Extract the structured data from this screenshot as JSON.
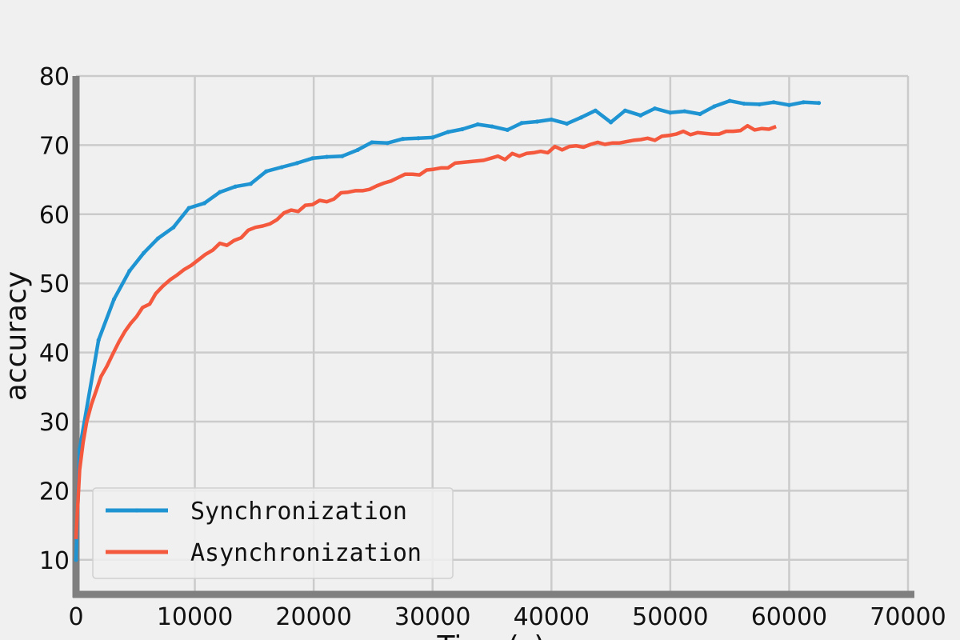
{
  "chart_data": {
    "type": "line",
    "xlabel": "Time(s)",
    "ylabel": "accuracy",
    "xlim": [
      0,
      70000
    ],
    "ylim": [
      5,
      80
    ],
    "xticks": [
      "0",
      "10000",
      "20000",
      "30000",
      "40000",
      "50000",
      "60000",
      "70000"
    ],
    "yticks": [
      "10",
      "20",
      "30",
      "40",
      "50",
      "60",
      "70",
      "80"
    ],
    "grid": true,
    "legend_position": "lower-left",
    "series": [
      {
        "name": "Synchronization",
        "color": "#1f94d2",
        "x": [
          0,
          300,
          1900,
          3200,
          4500,
          5700,
          6900,
          8200,
          9500,
          10800,
          12100,
          13400,
          14700,
          16000,
          17300,
          18600,
          19900,
          21100,
          22400,
          23700,
          24900,
          26200,
          27500,
          28800,
          30000,
          31300,
          32500,
          33800,
          35000,
          36300,
          37500,
          38800,
          40000,
          41300,
          42500,
          43700,
          45000,
          46200,
          47500,
          48700,
          50000,
          51200,
          52500,
          53700,
          55000,
          56200,
          57500,
          58700,
          60000,
          61200,
          62500
        ],
        "values": [
          10,
          26,
          41.8,
          47.7,
          51.8,
          54.4,
          56.5,
          58.1,
          60.9,
          61.6,
          63.2,
          64.0,
          64.4,
          66.2,
          66.8,
          67.4,
          68.1,
          68.3,
          68.4,
          69.3,
          70.4,
          70.3,
          70.9,
          71.0,
          71.1,
          71.9,
          72.3,
          73.0,
          72.7,
          72.2,
          73.2,
          73.4,
          73.7,
          73.1,
          74.0,
          75.0,
          73.3,
          75.0,
          74.3,
          75.3,
          74.7,
          74.9,
          74.5,
          75.6,
          76.4,
          76.0,
          75.9,
          76.2,
          75.8,
          76.2,
          76.1
        ]
      },
      {
        "name": "Asynchronization",
        "color": "#f4593e",
        "x": [
          0,
          300,
          600,
          900,
          1300,
          1700,
          2100,
          2600,
          3100,
          3600,
          4100,
          4600,
          5100,
          5600,
          6200,
          6700,
          7300,
          7900,
          8500,
          9100,
          9700,
          10300,
          10900,
          11500,
          12100,
          12700,
          13300,
          13900,
          14500,
          15100,
          15700,
          16300,
          16900,
          17500,
          18100,
          18700,
          19300,
          19900,
          20500,
          21100,
          21700,
          22300,
          22900,
          23500,
          24100,
          24700,
          25300,
          25900,
          26500,
          27100,
          27700,
          28300,
          28900,
          29500,
          30100,
          30700,
          31300,
          31900,
          32500,
          33100,
          33700,
          34300,
          34900,
          35500,
          36100,
          36700,
          37300,
          37900,
          38500,
          39100,
          39700,
          40300,
          40900,
          41500,
          42100,
          42700,
          43300,
          43900,
          44500,
          45100,
          45700,
          46300,
          46900,
          47500,
          48100,
          48700,
          49300,
          49900,
          50500,
          51100,
          51700,
          52300,
          52900,
          53500,
          54100,
          54700,
          55300,
          55900,
          56500,
          57100,
          57700,
          58300,
          58900
        ],
        "values": [
          13,
          23,
          27,
          30,
          32.5,
          34.5,
          36.5,
          38,
          39.8,
          41.5,
          43,
          44.2,
          45.2,
          46.5,
          47,
          48.5,
          49.6,
          50.5,
          51.2,
          52,
          52.6,
          53.4,
          54.2,
          54.8,
          55.8,
          55.5,
          56.2,
          56.6,
          57.7,
          58.1,
          58.3,
          58.6,
          59.2,
          60.2,
          60.6,
          60.4,
          61.3,
          61.4,
          62.0,
          61.8,
          62.2,
          63.1,
          63.2,
          63.4,
          63.4,
          63.6,
          64.1,
          64.5,
          64.8,
          65.3,
          65.8,
          65.8,
          65.7,
          66.4,
          66.5,
          66.7,
          66.7,
          67.4,
          67.5,
          67.6,
          67.7,
          67.8,
          68.1,
          68.4,
          67.9,
          68.8,
          68.4,
          68.8,
          68.9,
          69.1,
          68.9,
          69.8,
          69.3,
          69.8,
          69.9,
          69.7,
          70.1,
          70.4,
          70.1,
          70.3,
          70.3,
          70.5,
          70.7,
          70.8,
          71.0,
          70.7,
          71.3,
          71.4,
          71.6,
          72.0,
          71.5,
          71.8,
          71.7,
          71.6,
          71.6,
          72.0,
          72.0,
          72.1,
          72.8,
          72.2,
          72.4,
          72.3,
          72.7
        ]
      }
    ]
  }
}
